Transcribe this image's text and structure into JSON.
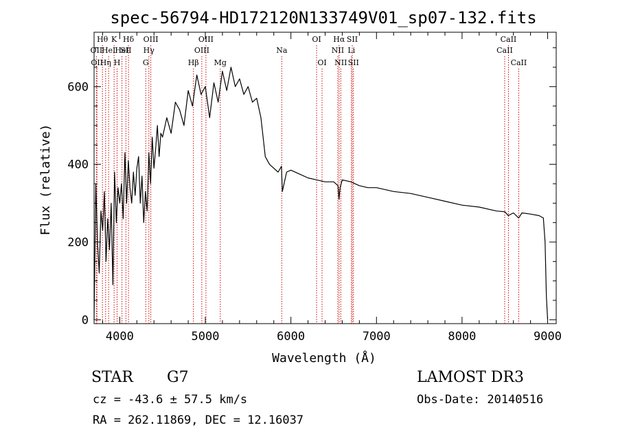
{
  "chart_data": {
    "type": "line",
    "title": "spec-56794-HD172120N133749V01_sp07-132.fits",
    "xlabel": "Wavelength (Å)",
    "ylabel": "Flux (relative)",
    "xlim": [
      3700,
      9100
    ],
    "ylim": [
      -10,
      740
    ],
    "xticks": [
      4000,
      5000,
      6000,
      7000,
      8000,
      9000
    ],
    "yticks": [
      0,
      200,
      400,
      600
    ],
    "grid": false,
    "line_color": "#000000",
    "marker_color": "#cc0000",
    "series": [
      {
        "x": [
          3700,
          3720,
          3740,
          3760,
          3780,
          3800,
          3820,
          3840,
          3860,
          3880,
          3900,
          3920,
          3940,
          3960,
          3980,
          4000,
          4020,
          4040,
          4060,
          4080,
          4100,
          4120,
          4140,
          4160,
          4180,
          4200,
          4220,
          4240,
          4260,
          4280,
          4300,
          4320,
          4340,
          4360,
          4380,
          4400,
          4420,
          4440,
          4460,
          4480,
          4500,
          4550,
          4600,
          4650,
          4700,
          4750,
          4800,
          4850,
          4900,
          4950,
          5000,
          5050,
          5100,
          5150,
          5200,
          5250,
          5300,
          5350,
          5400,
          5450,
          5500,
          5550,
          5600,
          5650,
          5680,
          5700,
          5750,
          5800,
          5850,
          5890,
          5900,
          5950,
          6000,
          6100,
          6200,
          6300,
          6400,
          6500,
          6550,
          6562,
          6575,
          6600,
          6700,
          6800,
          6900,
          7000,
          7200,
          7400,
          7600,
          7800,
          8000,
          8200,
          8400,
          8500,
          8540,
          8600,
          8662,
          8700,
          8800,
          8900,
          8950,
          8970,
          8985,
          9000
        ],
        "y": [
          0,
          350,
          200,
          120,
          280,
          230,
          330,
          150,
          260,
          180,
          300,
          90,
          380,
          250,
          340,
          300,
          350,
          260,
          430,
          300,
          410,
          340,
          300,
          380,
          320,
          390,
          420,
          300,
          370,
          250,
          330,
          280,
          430,
          350,
          470,
          390,
          440,
          500,
          420,
          480,
          470,
          520,
          480,
          560,
          540,
          500,
          590,
          550,
          630,
          580,
          600,
          520,
          610,
          560,
          640,
          590,
          650,
          600,
          620,
          580,
          600,
          560,
          570,
          520,
          460,
          420,
          400,
          390,
          380,
          395,
          330,
          380,
          385,
          375,
          365,
          360,
          355,
          355,
          345,
          310,
          340,
          360,
          355,
          345,
          340,
          340,
          330,
          325,
          315,
          305,
          295,
          290,
          280,
          278,
          268,
          275,
          262,
          275,
          272,
          268,
          262,
          200,
          60,
          0
        ]
      }
    ],
    "lines": [
      {
        "wl": 3727,
        "label": "OII",
        "row": 2
      },
      {
        "wl": 3734,
        "label": "OII",
        "row": 3
      },
      {
        "wl": 3798,
        "label": "Hθ",
        "row": 1
      },
      {
        "wl": 3835,
        "label": "Hη",
        "row": 3
      },
      {
        "wl": 3870,
        "label": "HeI",
        "row": 2
      },
      {
        "wl": 3934,
        "label": "K",
        "row": 1
      },
      {
        "wl": 3969,
        "label": "H",
        "row": 3
      },
      {
        "wl": 4026,
        "label": "HeI",
        "row": 2
      },
      {
        "wl": 4072,
        "label": "SII",
        "row": 2
      },
      {
        "wl": 4102,
        "label": "Hδ",
        "row": 1
      },
      {
        "wl": 4304,
        "label": "G",
        "row": 3
      },
      {
        "wl": 4340,
        "label": "Hγ",
        "row": 2
      },
      {
        "wl": 4363,
        "label": "OIII",
        "row": 1
      },
      {
        "wl": 4861,
        "label": "Hβ",
        "row": 3
      },
      {
        "wl": 4959,
        "label": "OIII",
        "row": 2
      },
      {
        "wl": 5007,
        "label": "OIII",
        "row": 1
      },
      {
        "wl": 5175,
        "label": "Mg",
        "row": 3
      },
      {
        "wl": 5893,
        "label": "Na",
        "row": 2
      },
      {
        "wl": 6300,
        "label": "OI",
        "row": 1
      },
      {
        "wl": 6364,
        "label": "OI",
        "row": 3
      },
      {
        "wl": 6548,
        "label": "NII",
        "row": 2
      },
      {
        "wl": 6563,
        "label": "Hα",
        "row": 1
      },
      {
        "wl": 6583,
        "label": "NII",
        "row": 3
      },
      {
        "wl": 6707,
        "label": "Li",
        "row": 2
      },
      {
        "wl": 6717,
        "label": "SII",
        "row": 1
      },
      {
        "wl": 6731,
        "label": "SII",
        "row": 3
      },
      {
        "wl": 8498,
        "label": "CaII",
        "row": 2
      },
      {
        "wl": 8542,
        "label": "CaII",
        "row": 1
      },
      {
        "wl": 8662,
        "label": "CaII",
        "row": 3
      }
    ]
  },
  "info": {
    "object_type": "STAR",
    "subclass": "G7",
    "cz": "cz = -43.6 ± 57.5 km/s",
    "radec": "RA = 262.11869, DEC =  12.16037",
    "survey": "LAMOST DR3",
    "obs_date": "Obs-Date: 20140516"
  }
}
